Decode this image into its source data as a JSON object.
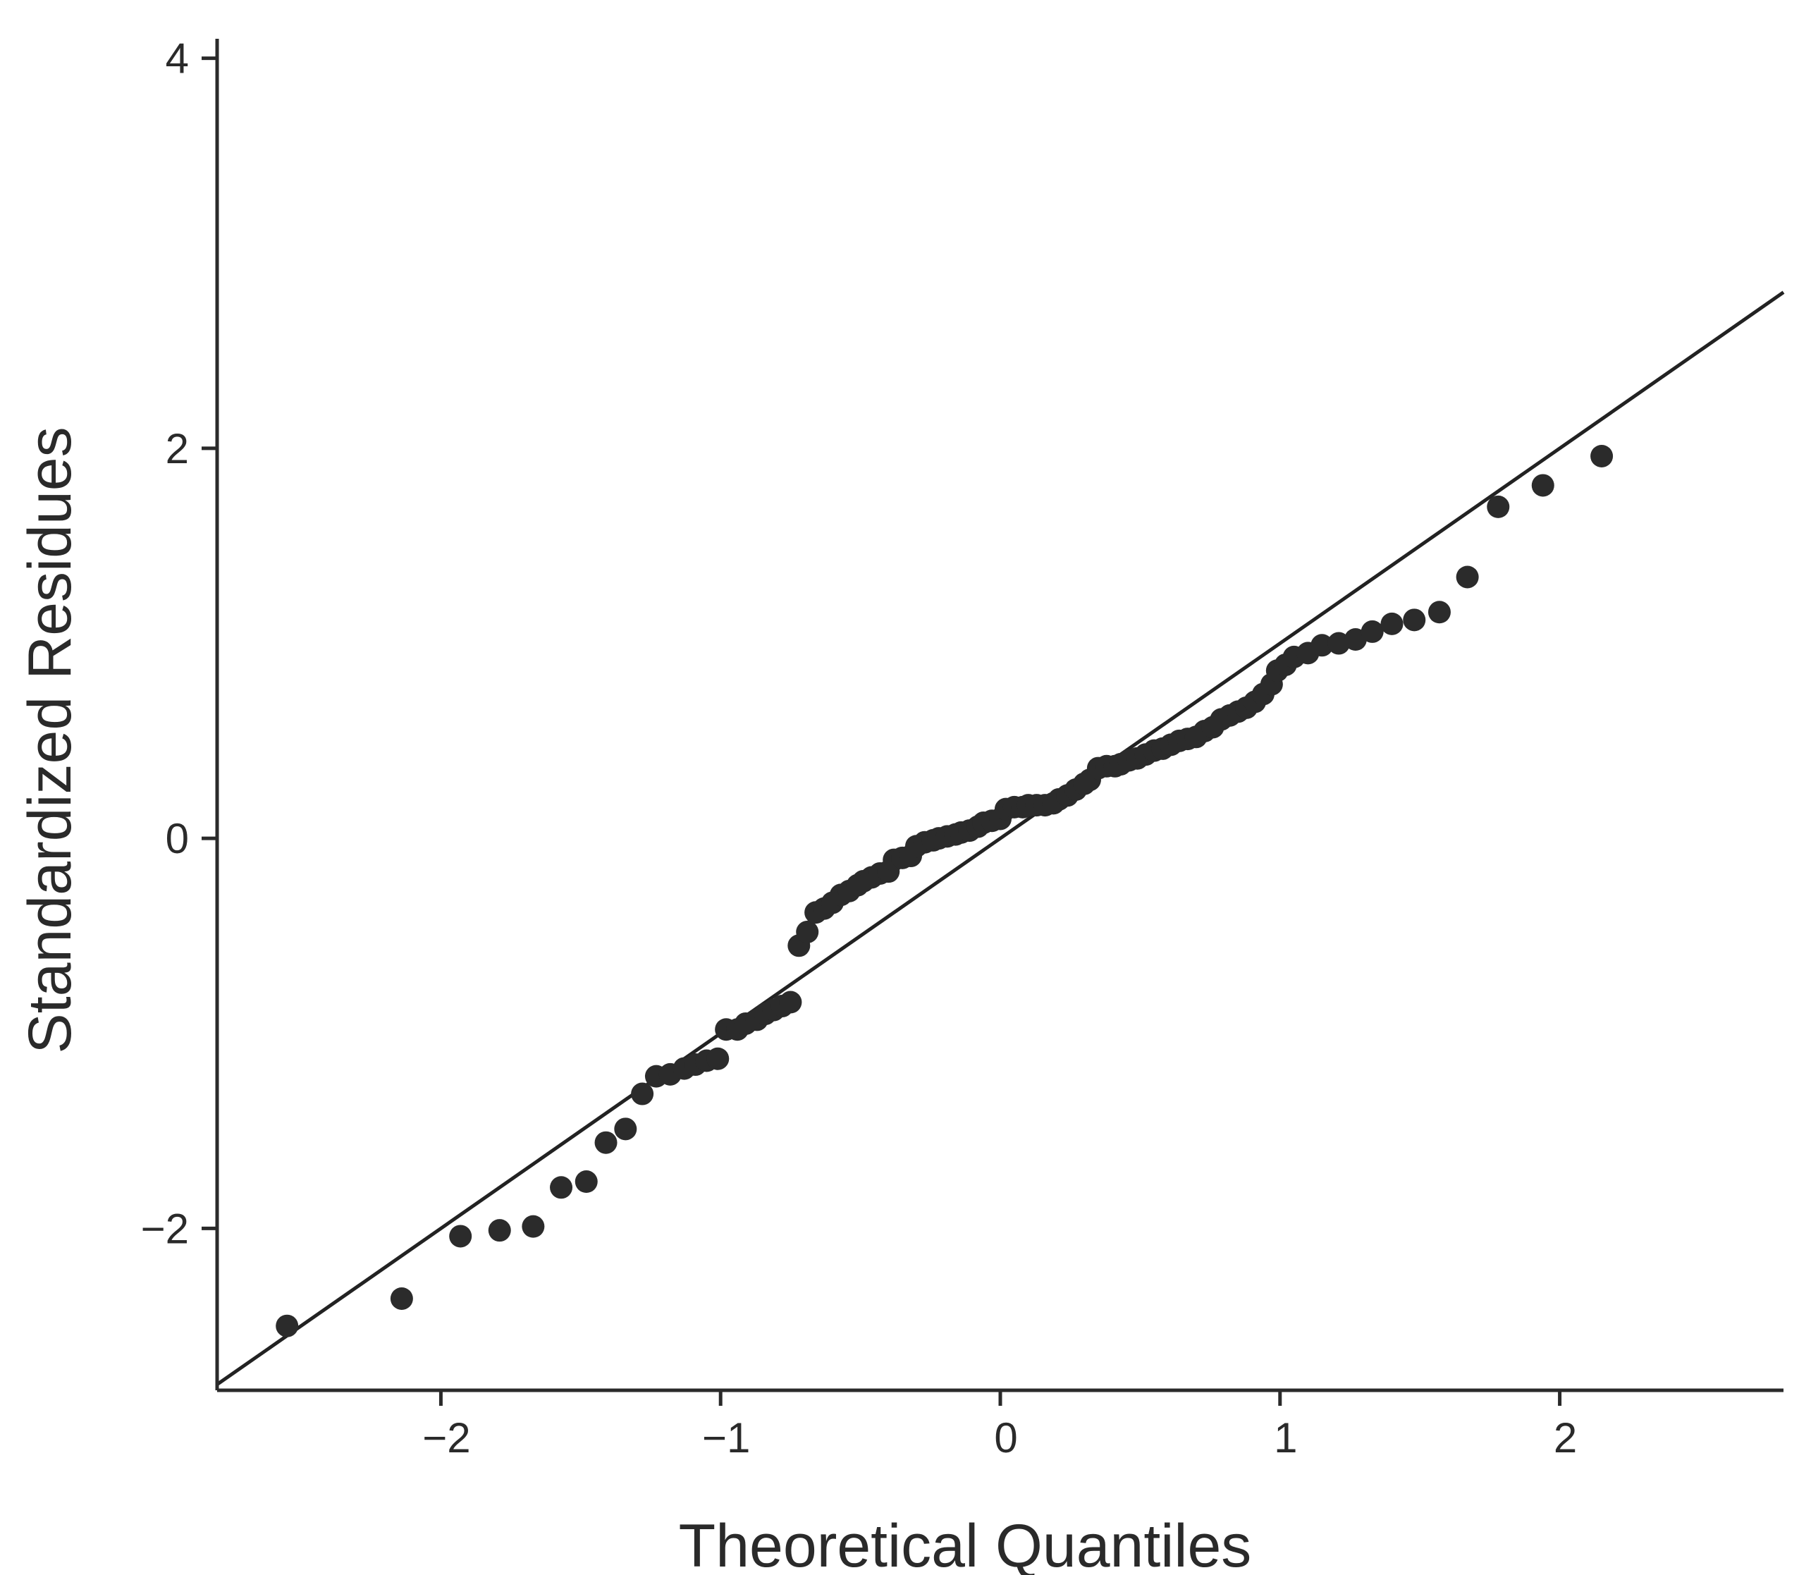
{
  "chart_data": {
    "type": "scatter",
    "title": "",
    "xlabel": "Theoretical Quantiles",
    "ylabel": "Standardized Residues",
    "xlim": [
      -2.8,
      2.8
    ],
    "ylim": [
      -2.83,
      4.1
    ],
    "xticks": [
      -2,
      -1,
      0,
      1,
      2
    ],
    "yticks": [
      -2,
      0,
      2,
      4
    ],
    "xtick_labels": [
      "−2",
      "−1",
      "0",
      "1",
      "2"
    ],
    "ytick_labels": [
      "−2",
      "0",
      "2",
      "4"
    ],
    "grid": false,
    "reference_line": {
      "slope": 1,
      "intercept": 0
    },
    "colors": {
      "points": "#2b2b2b",
      "line": "#222222",
      "axes": "#2a2a2a"
    },
    "points": [
      [
        -2.55,
        -2.5
      ],
      [
        -2.14,
        -2.36
      ],
      [
        -1.93,
        -2.04
      ],
      [
        -1.79,
        -2.01
      ],
      [
        -1.67,
        -1.99
      ],
      [
        -1.57,
        -1.79
      ],
      [
        -1.48,
        -1.76
      ],
      [
        -1.41,
        -1.56
      ],
      [
        -1.34,
        -1.49
      ],
      [
        -1.28,
        -1.31
      ],
      [
        -1.23,
        -1.22
      ],
      [
        -1.18,
        -1.21
      ],
      [
        -1.13,
        -1.18
      ],
      [
        -1.09,
        -1.16
      ],
      [
        -1.05,
        -1.14
      ],
      [
        -1.01,
        -1.13
      ],
      [
        -0.98,
        -0.98
      ],
      [
        -0.94,
        -0.98
      ],
      [
        -0.91,
        -0.95
      ],
      [
        -0.87,
        -0.93
      ],
      [
        -0.84,
        -0.9
      ],
      [
        -0.81,
        -0.88
      ],
      [
        -0.78,
        -0.86
      ],
      [
        -0.75,
        -0.84
      ],
      [
        -0.72,
        -0.55
      ],
      [
        -0.69,
        -0.48
      ],
      [
        -0.66,
        -0.38
      ],
      [
        -0.63,
        -0.36
      ],
      [
        -0.6,
        -0.33
      ],
      [
        -0.57,
        -0.29
      ],
      [
        -0.54,
        -0.27
      ],
      [
        -0.51,
        -0.24
      ],
      [
        -0.49,
        -0.22
      ],
      [
        -0.46,
        -0.2
      ],
      [
        -0.43,
        -0.18
      ],
      [
        -0.4,
        -0.17
      ],
      [
        -0.38,
        -0.11
      ],
      [
        -0.35,
        -0.1
      ],
      [
        -0.32,
        -0.09
      ],
      [
        -0.3,
        -0.04
      ],
      [
        -0.27,
        -0.02
      ],
      [
        -0.24,
        -0.01
      ],
      [
        -0.22,
        0.0
      ],
      [
        -0.19,
        0.01
      ],
      [
        -0.16,
        0.02
      ],
      [
        -0.14,
        0.03
      ],
      [
        -0.11,
        0.04
      ],
      [
        -0.08,
        0.06
      ],
      [
        -0.06,
        0.08
      ],
      [
        -0.03,
        0.09
      ],
      [
        0.0,
        0.1
      ],
      [
        0.02,
        0.15
      ],
      [
        0.05,
        0.16
      ],
      [
        0.08,
        0.16
      ],
      [
        0.1,
        0.17
      ],
      [
        0.13,
        0.17
      ],
      [
        0.16,
        0.17
      ],
      [
        0.19,
        0.18
      ],
      [
        0.21,
        0.2
      ],
      [
        0.24,
        0.22
      ],
      [
        0.27,
        0.25
      ],
      [
        0.3,
        0.28
      ],
      [
        0.32,
        0.3
      ],
      [
        0.35,
        0.36
      ],
      [
        0.38,
        0.37
      ],
      [
        0.41,
        0.37
      ],
      [
        0.43,
        0.38
      ],
      [
        0.46,
        0.4
      ],
      [
        0.49,
        0.41
      ],
      [
        0.52,
        0.43
      ],
      [
        0.55,
        0.45
      ],
      [
        0.58,
        0.46
      ],
      [
        0.61,
        0.48
      ],
      [
        0.64,
        0.5
      ],
      [
        0.67,
        0.51
      ],
      [
        0.7,
        0.52
      ],
      [
        0.73,
        0.55
      ],
      [
        0.76,
        0.57
      ],
      [
        0.79,
        0.61
      ],
      [
        0.82,
        0.63
      ],
      [
        0.85,
        0.65
      ],
      [
        0.88,
        0.67
      ],
      [
        0.91,
        0.7
      ],
      [
        0.94,
        0.74
      ],
      [
        0.97,
        0.79
      ],
      [
        0.99,
        0.86
      ],
      [
        1.02,
        0.89
      ],
      [
        1.05,
        0.93
      ],
      [
        1.1,
        0.95
      ],
      [
        1.15,
        0.99
      ],
      [
        1.21,
        1.0
      ],
      [
        1.27,
        1.02
      ],
      [
        1.33,
        1.06
      ],
      [
        1.4,
        1.1
      ],
      [
        1.48,
        1.12
      ],
      [
        1.57,
        1.16
      ],
      [
        1.67,
        1.34
      ],
      [
        1.78,
        1.7
      ],
      [
        1.94,
        1.81
      ],
      [
        2.15,
        1.96
      ]
    ]
  }
}
